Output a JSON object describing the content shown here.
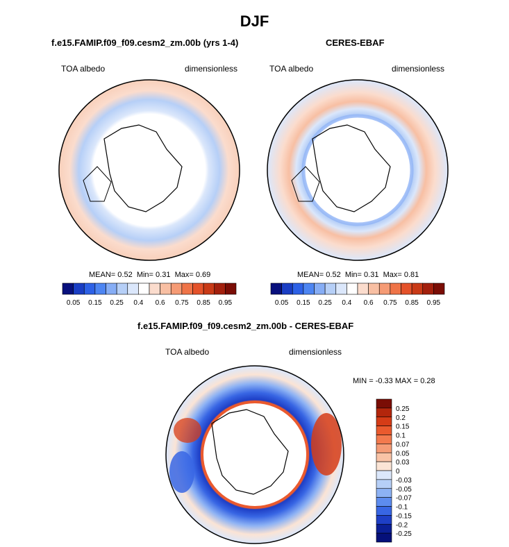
{
  "chart_data": [
    {
      "type": "heatmap",
      "projection": "north-polar-stereographic",
      "subtitle": "f.e15.FAMIP.f09_f09.cesm2_zm.00b (yrs 1-4)",
      "left_label": "TOA albedo",
      "right_label": "dimensionless",
      "stats": {
        "mean_label": "MEAN=",
        "mean": "0.52",
        "min_label": "Min=",
        "min": "0.31",
        "max_label": "Max=",
        "max": "0.69"
      },
      "colorbar": {
        "orientation": "horizontal",
        "tick_labels": [
          "0.05",
          "0.15",
          "0.25",
          "0.4",
          "0.6",
          "0.75",
          "0.85",
          "0.95"
        ]
      }
    },
    {
      "type": "heatmap",
      "projection": "north-polar-stereographic",
      "subtitle": "CERES-EBAF",
      "left_label": "TOA albedo",
      "right_label": "dimensionless",
      "stats": {
        "mean_label": "MEAN=",
        "mean": "0.52",
        "min_label": "Min=",
        "min": "0.31",
        "max_label": "Max=",
        "max": "0.81"
      },
      "colorbar": {
        "orientation": "horizontal",
        "tick_labels": [
          "0.05",
          "0.15",
          "0.25",
          "0.4",
          "0.6",
          "0.75",
          "0.85",
          "0.95"
        ]
      }
    },
    {
      "type": "heatmap",
      "projection": "north-polar-stereographic",
      "subtitle": "f.e15.FAMIP.f09_f09.cesm2_zm.00b - CERES-EBAF",
      "left_label": "TOA albedo",
      "right_label": "dimensionless",
      "stats": {
        "min_label": "MIN =",
        "min": "-0.33",
        "max_label": "MAX =",
        "max": "0.28"
      },
      "colorbar": {
        "orientation": "vertical",
        "tick_labels": [
          "0.25",
          "0.2",
          "0.15",
          "0.1",
          "0.07",
          "0.05",
          "0.03",
          "0",
          "-0.03",
          "-0.05",
          "-0.07",
          "-0.1",
          "-0.15",
          "-0.2",
          "-0.25"
        ]
      }
    }
  ],
  "figure_title": "DJF",
  "colors": {
    "abs_scale": [
      "#08107d",
      "#1a3ec4",
      "#2d61e6",
      "#4d85f2",
      "#86adf5",
      "#b6cff7",
      "#dbe7fb",
      "#ffffff",
      "#fbdccd",
      "#f8bfa3",
      "#f59b75",
      "#ef7448",
      "#e4522a",
      "#c93a17",
      "#a3200d",
      "#7a0d05"
    ],
    "diff_scale": [
      "#7a0d05",
      "#b3260c",
      "#d53c17",
      "#ea5a2e",
      "#f37a4e",
      "#f59c77",
      "#f9c3a6",
      "#fbe4d5",
      "#dbe7fb",
      "#b6cff7",
      "#8db2f4",
      "#5d8cef",
      "#3866e4",
      "#1e3fc6",
      "#0b1f96",
      "#05107a"
    ],
    "land_outline": "#000000"
  }
}
